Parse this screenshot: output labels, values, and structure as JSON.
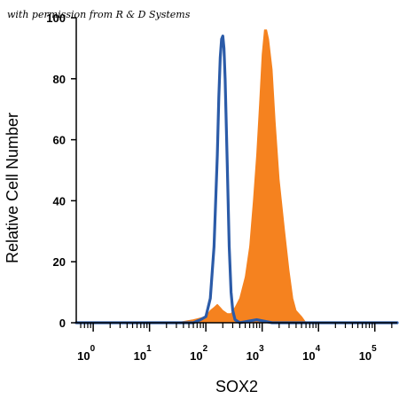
{
  "watermark": "with permission from R & D Systems",
  "chart_data": {
    "type": "area",
    "title": "",
    "xlabel": "SOX2",
    "ylabel": "Relative Cell Number",
    "xscale": "log",
    "xlim": [
      0.5,
      250000
    ],
    "ylim": [
      0,
      100
    ],
    "xticks": [
      {
        "base": "10",
        "exp": "0",
        "value": 1
      },
      {
        "base": "10",
        "exp": "1",
        "value": 10
      },
      {
        "base": "10",
        "exp": "2",
        "value": 100
      },
      {
        "base": "10",
        "exp": "3",
        "value": 1000
      },
      {
        "base": "10",
        "exp": "4",
        "value": 10000
      },
      {
        "base": "10",
        "exp": "5",
        "value": 100000
      }
    ],
    "yticks": [
      "0",
      "20",
      "40",
      "60",
      "80",
      "100"
    ],
    "grid": false,
    "series": [
      {
        "style": "filled",
        "color": "#f5821f",
        "x": [
          0.5,
          30,
          60,
          100,
          120,
          140,
          160,
          180,
          200,
          240,
          280,
          330,
          400,
          500,
          600,
          700,
          800,
          900,
          1000,
          1100,
          1200,
          1300,
          1500,
          1700,
          2000,
          2500,
          3000,
          3500,
          4000,
          5000,
          6000,
          250000
        ],
        "y": [
          0,
          0,
          1,
          2,
          4,
          5,
          6,
          5,
          4,
          3,
          3,
          5,
          8,
          15,
          25,
          40,
          55,
          72,
          88,
          96,
          96,
          93,
          83,
          66,
          47,
          30,
          17,
          8,
          4,
          2,
          0,
          0
        ]
      },
      {
        "style": "line",
        "color": "#2b5ba8",
        "x": [
          0.5,
          60,
          80,
          100,
          120,
          140,
          160,
          170,
          180,
          190,
          200,
          210,
          220,
          240,
          260,
          280,
          300,
          330,
          400,
          800,
          1500,
          2500,
          250000
        ],
        "y": [
          0,
          0,
          1,
          2,
          8,
          25,
          55,
          74,
          87,
          93,
          94,
          90,
          80,
          52,
          25,
          10,
          4,
          1,
          0,
          1,
          0,
          0,
          0
        ]
      }
    ]
  }
}
